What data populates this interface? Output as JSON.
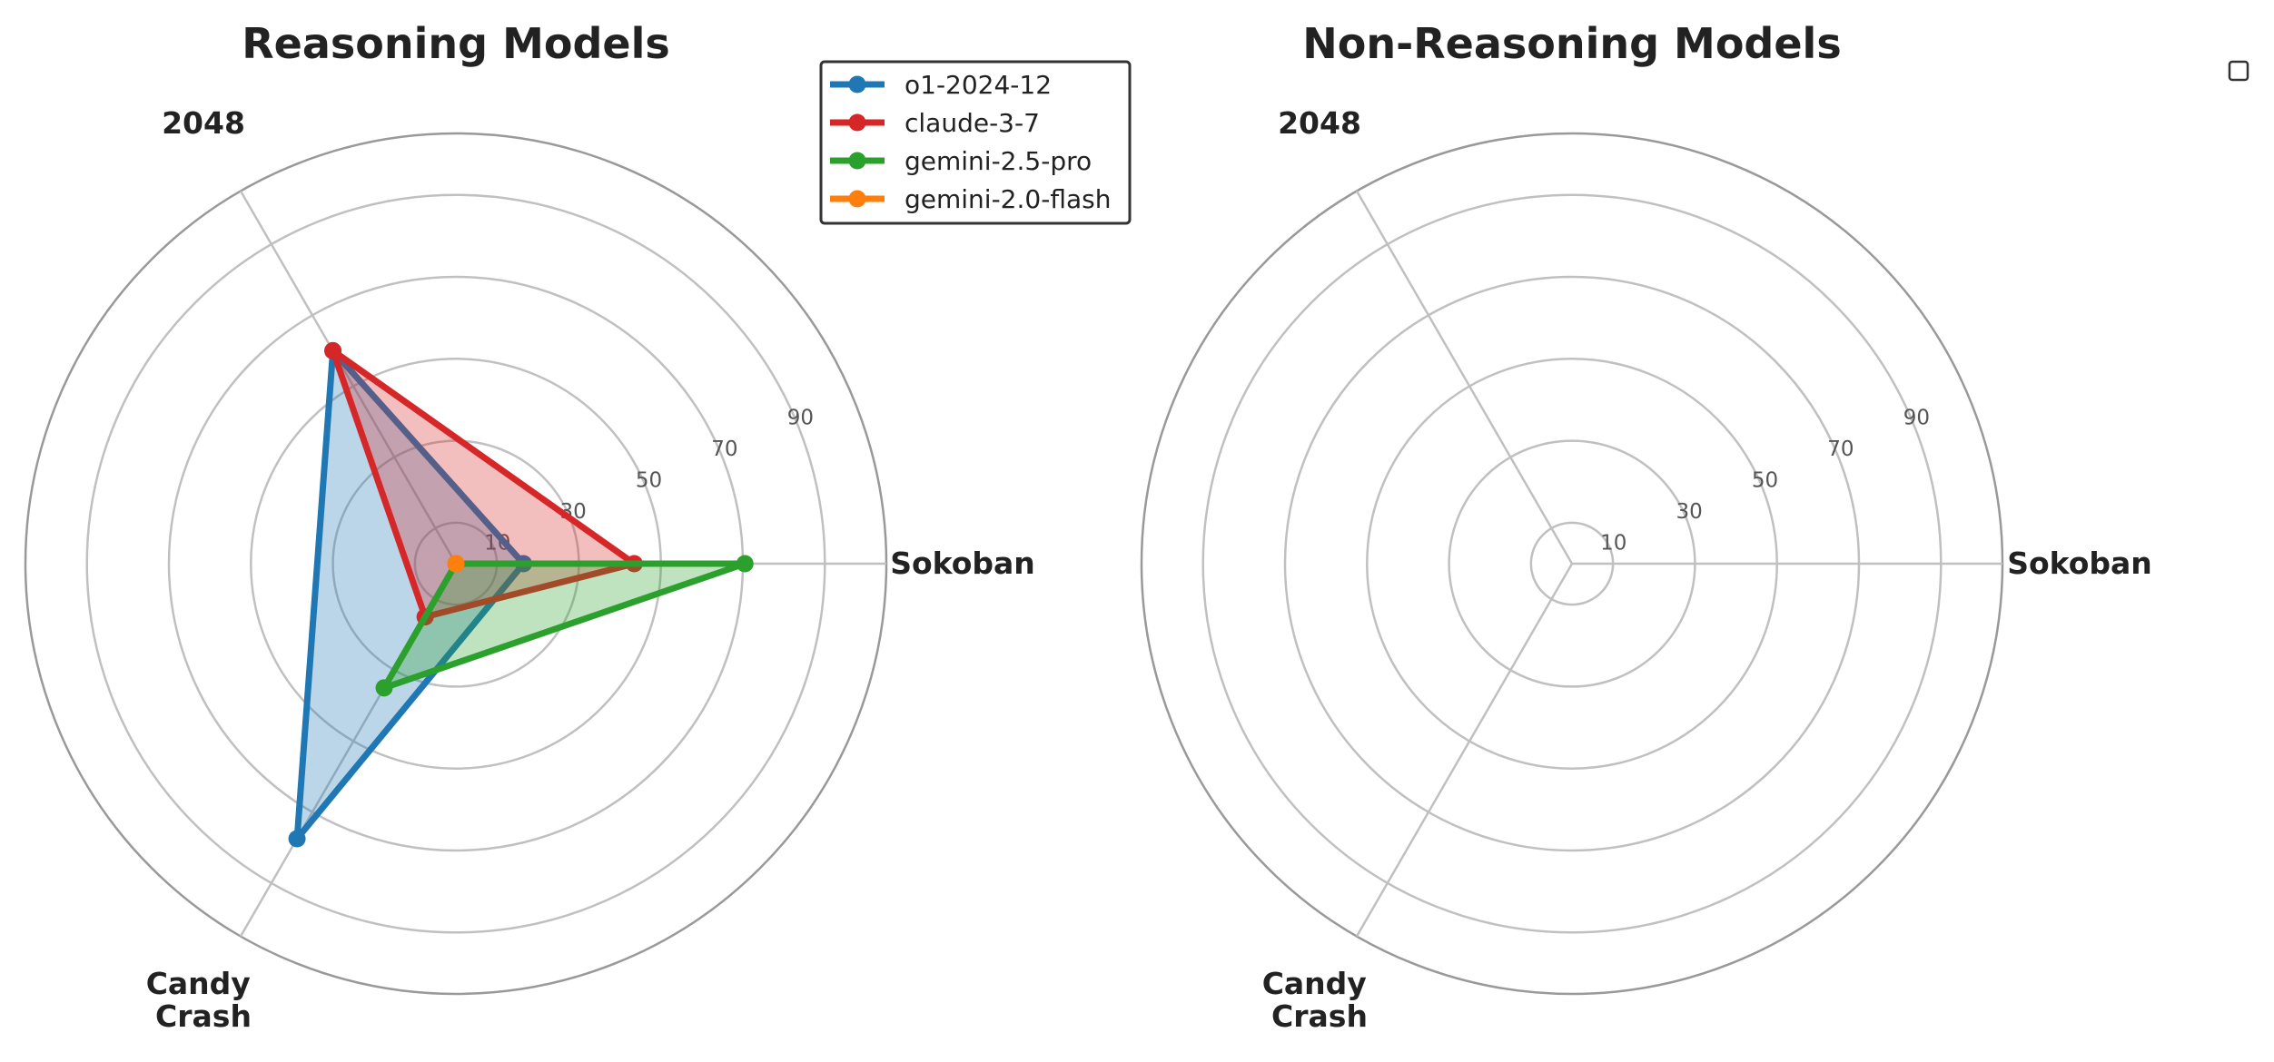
{
  "chart_data": [
    {
      "type": "radar",
      "title": "Reasoning Models",
      "axes": [
        "Sokoban",
        "2048",
        "Candy Crash"
      ],
      "r_ticks": [
        10,
        30,
        50,
        70,
        90
      ],
      "r_max": 105,
      "grid": true,
      "legend_position": "top-right",
      "series": [
        {
          "name": "o1-2024-12",
          "color": "#1f77b4",
          "values": [
            16.5,
            60,
            77.5
          ]
        },
        {
          "name": "claude-3-7",
          "color": "#d62728",
          "values": [
            43.5,
            60,
            15
          ]
        },
        {
          "name": "gemini-2.5-pro",
          "color": "#2ca02c",
          "values": [
            70.5,
            0,
            35
          ]
        },
        {
          "name": "gemini-2.0-flash",
          "color": "#ff7f0e",
          "values": [
            0,
            0,
            0
          ]
        }
      ]
    },
    {
      "type": "radar",
      "title": "Non-Reasoning Models",
      "axes": [
        "Sokoban",
        "2048",
        "Candy Crash"
      ],
      "r_ticks": [
        10,
        30,
        50,
        70,
        90
      ],
      "r_max": 105,
      "grid": true,
      "legend_position": "top-right",
      "series": []
    }
  ]
}
